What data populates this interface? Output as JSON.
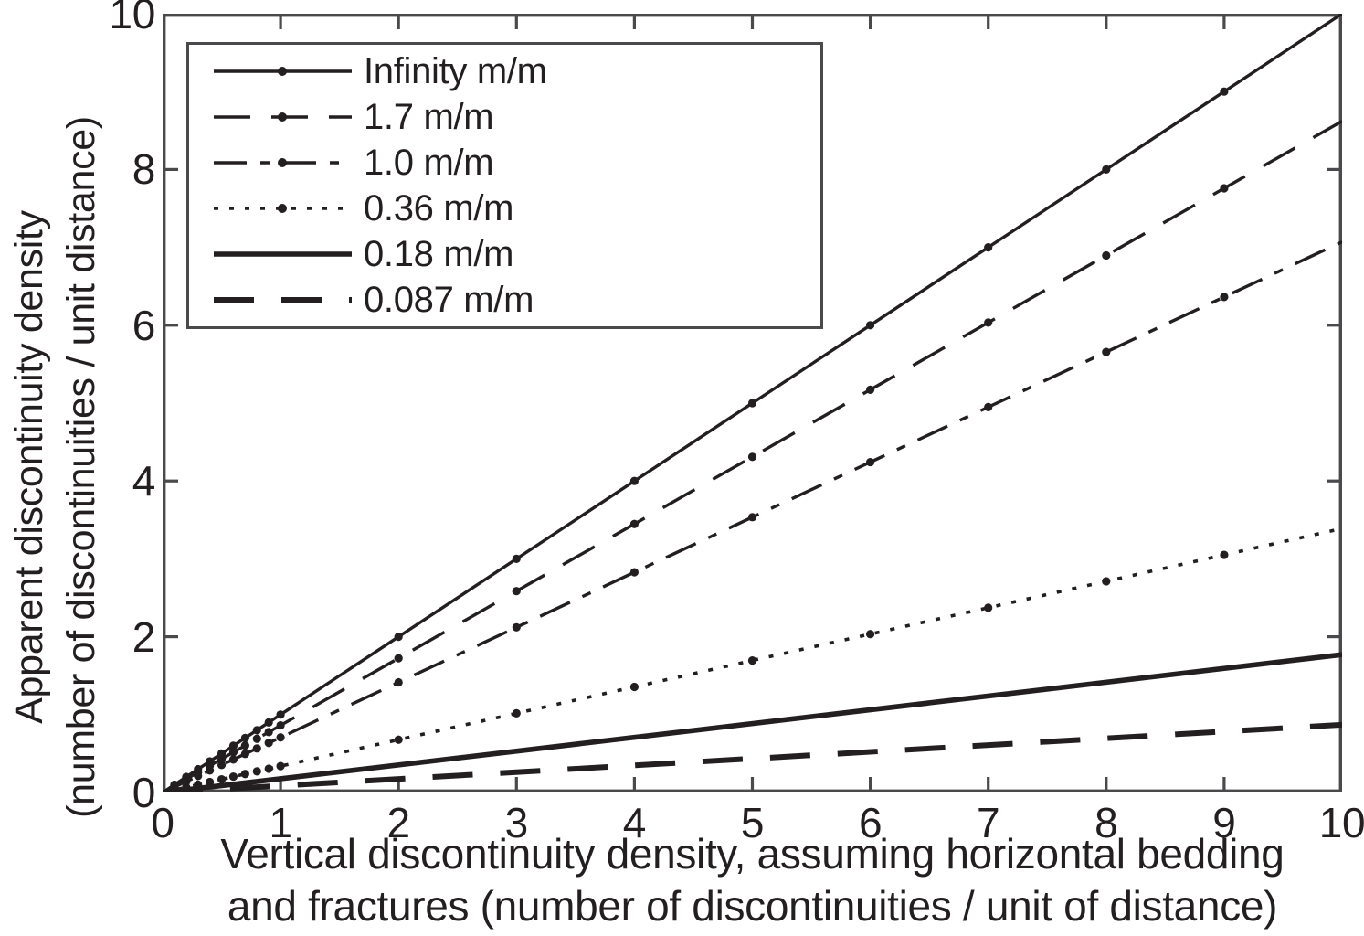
{
  "figure": {
    "background_color": "#ffffff",
    "ink_color": "#231f20",
    "frame_color": "#4a4a4c"
  },
  "chart_data": {
    "type": "line",
    "title": "",
    "xlabel_lines": [
      "Vertical discontinuity density, assuming horizontal bedding",
      "and fractures (number of discontinuities / unit of distance)"
    ],
    "ylabel_lines": [
      "Apparent discontinuity density",
      "(number of discontinuities / unit distance)"
    ],
    "xlim": [
      0,
      10
    ],
    "ylim": [
      0,
      10
    ],
    "x_ticks": [
      0,
      1,
      2,
      3,
      4,
      5,
      6,
      7,
      8,
      9,
      10
    ],
    "y_ticks": [
      0,
      2,
      4,
      6,
      8,
      10
    ],
    "grid": false,
    "legend": {
      "position": "upper-left-inside",
      "entries": [
        "Infinity m/m",
        "1.7 m/m",
        "1.0 m/m",
        "0.36 m/m",
        "0.18 m/m",
        "0.087 m/m"
      ]
    },
    "series": [
      {
        "name": "Infinity m/m",
        "gradient_m_per_m": "Infinity",
        "slope": 1.0,
        "y_at_x10": 10.0,
        "style": "solid-thin",
        "markers": true
      },
      {
        "name": "1.7 m/m",
        "gradient_m_per_m": 1.7,
        "slope": 0.862,
        "y_at_x10": 8.62,
        "style": "long-dash",
        "markers": true
      },
      {
        "name": "1.0 m/m",
        "gradient_m_per_m": 1.0,
        "slope": 0.707,
        "y_at_x10": 7.07,
        "style": "dash-dot",
        "markers": true
      },
      {
        "name": "0.36 m/m",
        "gradient_m_per_m": 0.36,
        "slope": 0.339,
        "y_at_x10": 3.39,
        "style": "dotted",
        "markers": true
      },
      {
        "name": "0.18 m/m",
        "gradient_m_per_m": 0.18,
        "slope": 0.177,
        "y_at_x10": 1.77,
        "style": "solid-thick",
        "markers": false
      },
      {
        "name": "0.087 m/m",
        "gradient_m_per_m": 0.087,
        "slope": 0.087,
        "y_at_x10": 0.87,
        "style": "long-dash-thick",
        "markers": false
      }
    ],
    "marker_x": [
      0.1,
      0.2,
      0.3,
      0.4,
      0.5,
      0.6,
      0.7,
      0.8,
      0.9,
      1,
      2,
      3,
      4,
      5,
      6,
      7,
      8,
      9
    ]
  }
}
